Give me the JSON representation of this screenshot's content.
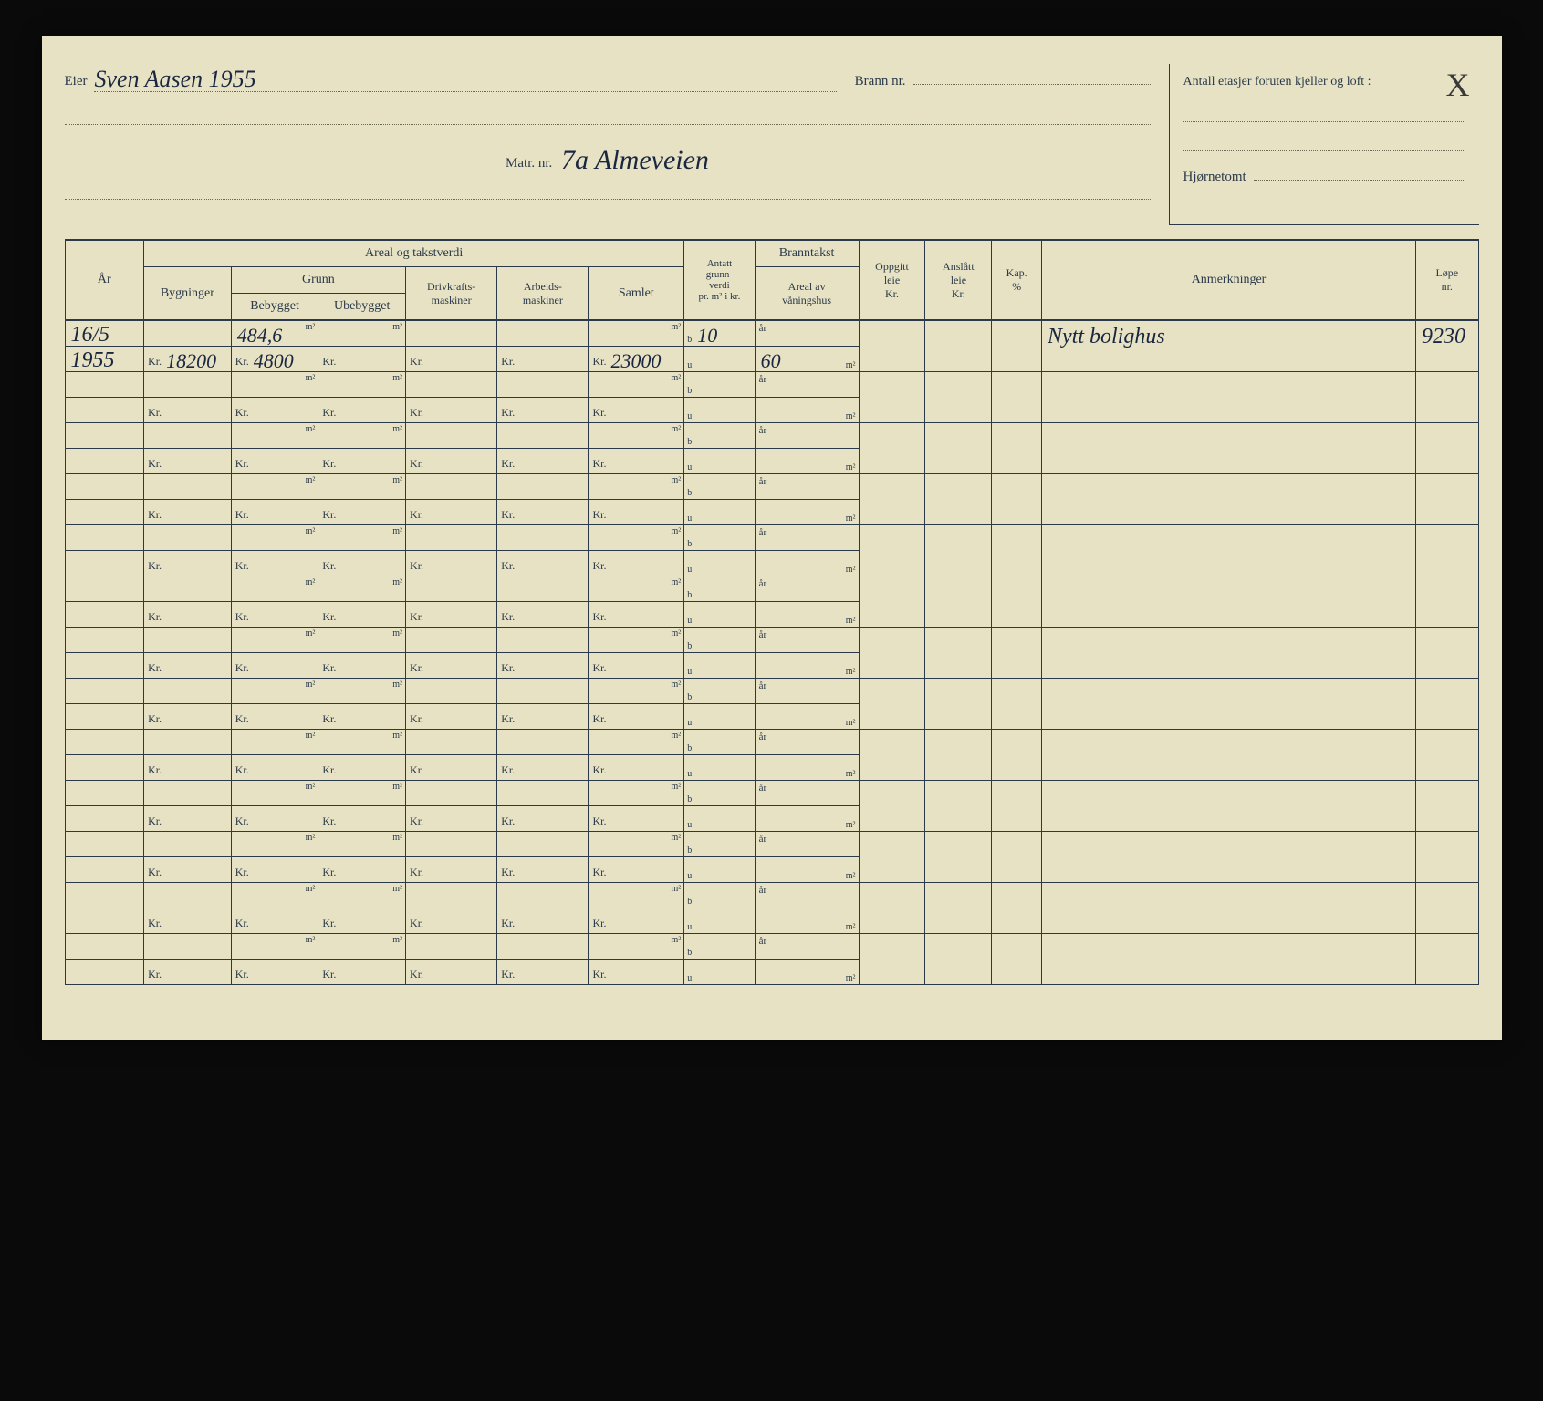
{
  "header": {
    "eier_label": "Eier",
    "eier_value": "Sven Aasen 1955",
    "brann_label": "Brann nr.",
    "brann_value": "",
    "matr_label": "Matr. nr.",
    "matr_value": "7a  Almeveien",
    "etasjer_label": "Antall etasjer foruten kjeller og loft :",
    "etasjer_value": "",
    "hjornetomt_label": "Hjørnetomt",
    "hjornetomt_value": "",
    "corner_mark": "X"
  },
  "table": {
    "headers": {
      "areal_takstverdi": "Areal og takstverdi",
      "ar": "År",
      "bygninger": "Bygninger",
      "grunn": "Grunn",
      "bebygget": "Bebygget",
      "ubebygget": "Ubebygget",
      "drivkrafts": "Drivkrafts-\nmaskiner",
      "arbeids": "Arbeids-\nmaskiner",
      "samlet": "Samlet",
      "antatt": "Antatt\ngrunn-\nverdi\npr. m² i kr.",
      "branntakst": "Branntakst",
      "areal_van": "Areal av\nvåningshus",
      "oppgitt": "Oppgitt\nleie\nKr.",
      "anslatt": "Anslått\nleie\nKr.",
      "kap": "Kap.\n%",
      "anmerkninger": "Anmerkninger",
      "lope": "Løpe\nnr."
    },
    "units": {
      "kr": "Kr.",
      "m2": "m²",
      "b": "b",
      "u": "u",
      "ar": "år"
    },
    "rows": [
      {
        "ar_top": "16/5",
        "ar_bot": "1955",
        "byg_kr": "18200",
        "beb_m2": "484,6",
        "beb_kr": "4800",
        "ube_m2": "",
        "ube_kr": "",
        "driv_kr": "",
        "arb_kr": "",
        "sam_m2": "",
        "sam_kr": "23000",
        "ant_b": "10",
        "ant_u": "",
        "bra_ar": "",
        "bra_m2": "60",
        "anm": "Nytt bolighus",
        "lope": "9230"
      },
      {
        "ar_top": "",
        "ar_bot": "",
        "byg_kr": "",
        "beb_m2": "",
        "beb_kr": "",
        "ube_m2": "",
        "ube_kr": "",
        "driv_kr": "",
        "arb_kr": "",
        "sam_m2": "",
        "sam_kr": "",
        "ant_b": "",
        "ant_u": "",
        "bra_ar": "",
        "bra_m2": "",
        "anm": "",
        "lope": ""
      },
      {
        "ar_top": "",
        "ar_bot": "",
        "byg_kr": "",
        "beb_m2": "",
        "beb_kr": "",
        "ube_m2": "",
        "ube_kr": "",
        "driv_kr": "",
        "arb_kr": "",
        "sam_m2": "",
        "sam_kr": "",
        "ant_b": "",
        "ant_u": "",
        "bra_ar": "",
        "bra_m2": "",
        "anm": "",
        "lope": ""
      },
      {
        "ar_top": "",
        "ar_bot": "",
        "byg_kr": "",
        "beb_m2": "",
        "beb_kr": "",
        "ube_m2": "",
        "ube_kr": "",
        "driv_kr": "",
        "arb_kr": "",
        "sam_m2": "",
        "sam_kr": "",
        "ant_b": "",
        "ant_u": "",
        "bra_ar": "",
        "bra_m2": "",
        "anm": "",
        "lope": ""
      },
      {
        "ar_top": "",
        "ar_bot": "",
        "byg_kr": "",
        "beb_m2": "",
        "beb_kr": "",
        "ube_m2": "",
        "ube_kr": "",
        "driv_kr": "",
        "arb_kr": "",
        "sam_m2": "",
        "sam_kr": "",
        "ant_b": "",
        "ant_u": "",
        "bra_ar": "",
        "bra_m2": "",
        "anm": "",
        "lope": ""
      },
      {
        "ar_top": "",
        "ar_bot": "",
        "byg_kr": "",
        "beb_m2": "",
        "beb_kr": "",
        "ube_m2": "",
        "ube_kr": "",
        "driv_kr": "",
        "arb_kr": "",
        "sam_m2": "",
        "sam_kr": "",
        "ant_b": "",
        "ant_u": "",
        "bra_ar": "",
        "bra_m2": "",
        "anm": "",
        "lope": ""
      },
      {
        "ar_top": "",
        "ar_bot": "",
        "byg_kr": "",
        "beb_m2": "",
        "beb_kr": "",
        "ube_m2": "",
        "ube_kr": "",
        "driv_kr": "",
        "arb_kr": "",
        "sam_m2": "",
        "sam_kr": "",
        "ant_b": "",
        "ant_u": "",
        "bra_ar": "",
        "bra_m2": "",
        "anm": "",
        "lope": ""
      },
      {
        "ar_top": "",
        "ar_bot": "",
        "byg_kr": "",
        "beb_m2": "",
        "beb_kr": "",
        "ube_m2": "",
        "ube_kr": "",
        "driv_kr": "",
        "arb_kr": "",
        "sam_m2": "",
        "sam_kr": "",
        "ant_b": "",
        "ant_u": "",
        "bra_ar": "",
        "bra_m2": "",
        "anm": "",
        "lope": ""
      },
      {
        "ar_top": "",
        "ar_bot": "",
        "byg_kr": "",
        "beb_m2": "",
        "beb_kr": "",
        "ube_m2": "",
        "ube_kr": "",
        "driv_kr": "",
        "arb_kr": "",
        "sam_m2": "",
        "sam_kr": "",
        "ant_b": "",
        "ant_u": "",
        "bra_ar": "",
        "bra_m2": "",
        "anm": "",
        "lope": ""
      },
      {
        "ar_top": "",
        "ar_bot": "",
        "byg_kr": "",
        "beb_m2": "",
        "beb_kr": "",
        "ube_m2": "",
        "ube_kr": "",
        "driv_kr": "",
        "arb_kr": "",
        "sam_m2": "",
        "sam_kr": "",
        "ant_b": "",
        "ant_u": "",
        "bra_ar": "",
        "bra_m2": "",
        "anm": "",
        "lope": ""
      },
      {
        "ar_top": "",
        "ar_bot": "",
        "byg_kr": "",
        "beb_m2": "",
        "beb_kr": "",
        "ube_m2": "",
        "ube_kr": "",
        "driv_kr": "",
        "arb_kr": "",
        "sam_m2": "",
        "sam_kr": "",
        "ant_b": "",
        "ant_u": "",
        "bra_ar": "",
        "bra_m2": "",
        "anm": "",
        "lope": ""
      },
      {
        "ar_top": "",
        "ar_bot": "",
        "byg_kr": "",
        "beb_m2": "",
        "beb_kr": "",
        "ube_m2": "",
        "ube_kr": "",
        "driv_kr": "",
        "arb_kr": "",
        "sam_m2": "",
        "sam_kr": "",
        "ant_b": "",
        "ant_u": "",
        "bra_ar": "",
        "bra_m2": "",
        "anm": "",
        "lope": ""
      },
      {
        "ar_top": "",
        "ar_bot": "",
        "byg_kr": "",
        "beb_m2": "",
        "beb_kr": "",
        "ube_m2": "",
        "ube_kr": "",
        "driv_kr": "",
        "arb_kr": "",
        "sam_m2": "",
        "sam_kr": "",
        "ant_b": "",
        "ant_u": "",
        "bra_ar": "",
        "bra_m2": "",
        "anm": "",
        "lope": ""
      }
    ]
  },
  "colors": {
    "paper": "#e8e2c4",
    "ink_print": "#2a3a4a",
    "ink_hand": "#1a2740",
    "dotted": "#6a6a55",
    "background": "#0a0a0a"
  }
}
